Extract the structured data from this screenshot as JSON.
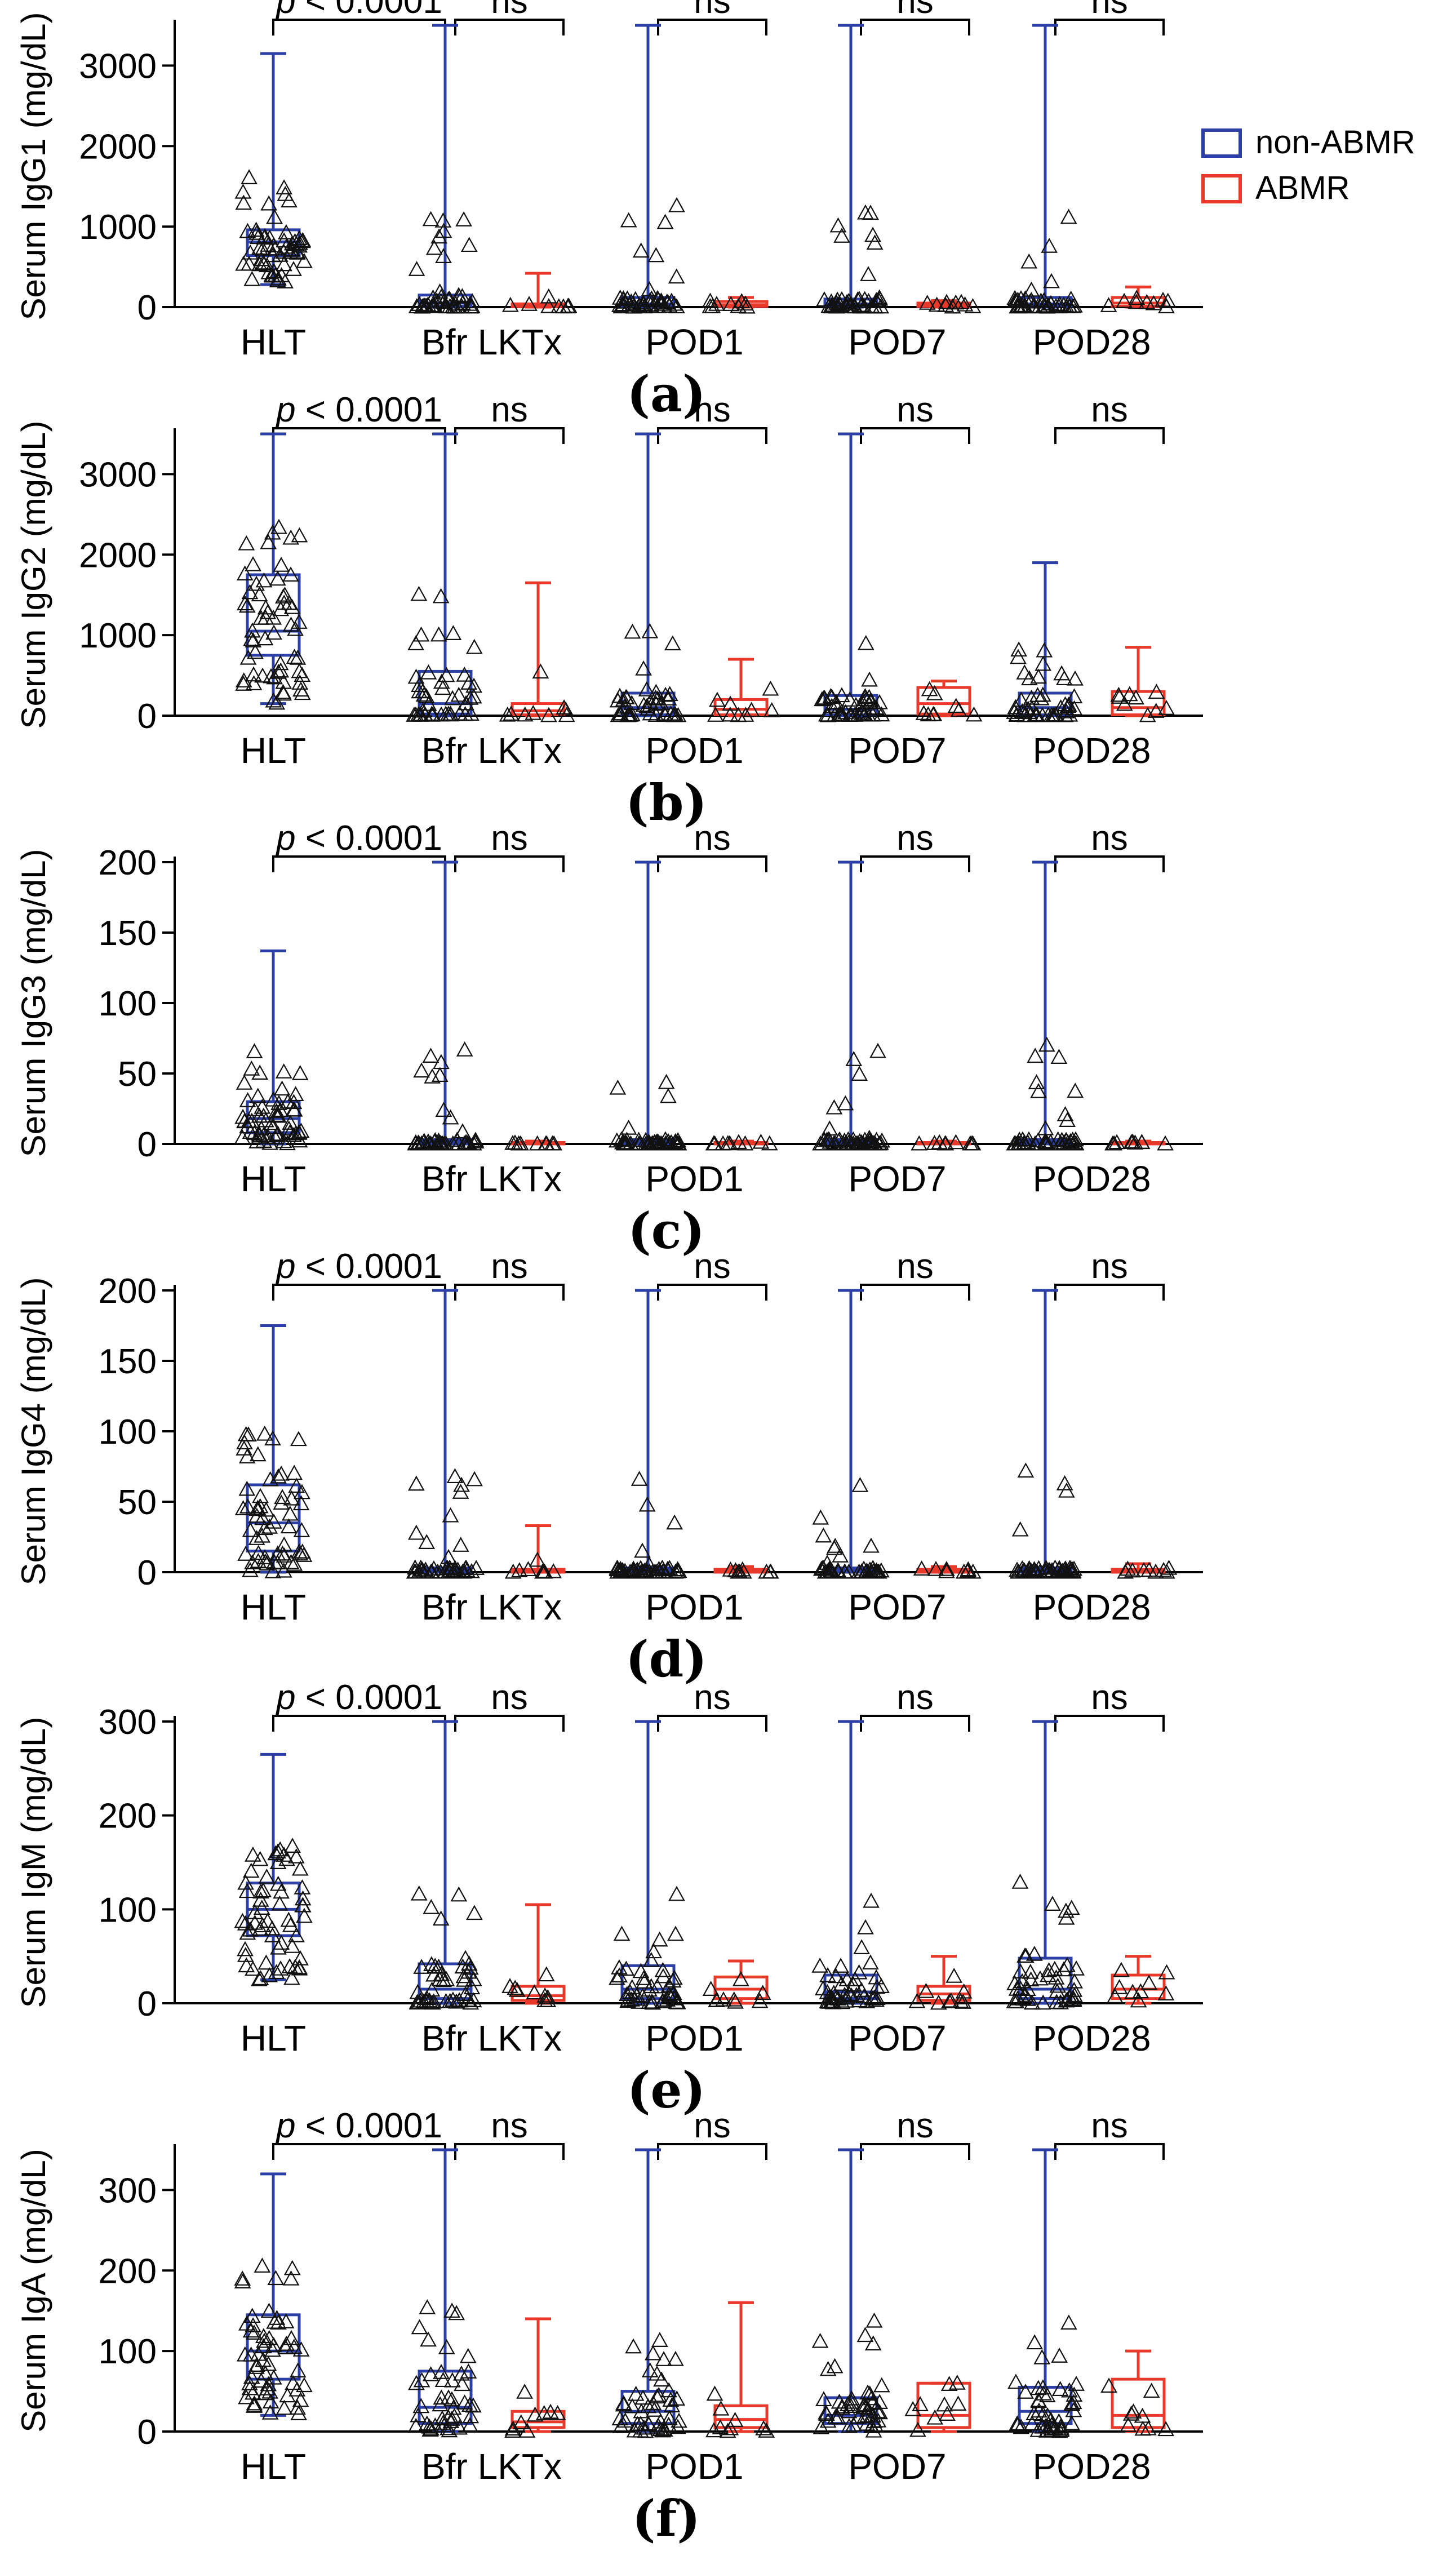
{
  "legend": {
    "non_abmr": "non-ABMR",
    "abmr": "ABMR"
  },
  "colors": {
    "non_abmr": "#2b3fa6",
    "abmr": "#e8392b",
    "points": "#111111"
  },
  "chart_data": [
    {
      "panel": "(a)",
      "type": "box",
      "ylabel": "Serum IgG1 (mg/dL)",
      "ylim": [
        0,
        3500
      ],
      "yticks": [
        0,
        1000,
        2000,
        3000
      ],
      "categories": [
        "HLT",
        "Bfr LKTx",
        "POD1",
        "POD7",
        "POD28"
      ],
      "comparisons": [
        "p < 0.0001",
        "ns",
        "ns",
        "ns",
        "ns"
      ],
      "boxes": [
        {
          "cat": 0,
          "group": "non-ABMR",
          "min": 280,
          "q1": 640,
          "median": 810,
          "q3": 960,
          "max": 3150
        },
        {
          "cat": 1,
          "group": "non-ABMR",
          "min": 0,
          "q1": 10,
          "median": 50,
          "q3": 150,
          "max": 3500
        },
        {
          "cat": 1,
          "group": "ABMR",
          "min": 0,
          "q1": 5,
          "median": 20,
          "q3": 40,
          "max": 420
        },
        {
          "cat": 2,
          "group": "non-ABMR",
          "min": 0,
          "q1": 10,
          "median": 40,
          "q3": 120,
          "max": 3500
        },
        {
          "cat": 2,
          "group": "ABMR",
          "min": 0,
          "q1": 10,
          "median": 30,
          "q3": 70,
          "max": 120
        },
        {
          "cat": 3,
          "group": "non-ABMR",
          "min": 0,
          "q1": 10,
          "median": 40,
          "q3": 100,
          "max": 3500
        },
        {
          "cat": 3,
          "group": "ABMR",
          "min": 0,
          "q1": 10,
          "median": 30,
          "q3": 50,
          "max": 80
        },
        {
          "cat": 4,
          "group": "non-ABMR",
          "min": 0,
          "q1": 10,
          "median": 40,
          "q3": 120,
          "max": 3500
        },
        {
          "cat": 4,
          "group": "ABMR",
          "min": 0,
          "q1": 10,
          "median": 50,
          "q3": 120,
          "max": 250
        }
      ]
    },
    {
      "panel": "(b)",
      "type": "box",
      "ylabel": "Serum IgG2 (mg/dL)",
      "ylim": [
        0,
        3500
      ],
      "yticks": [
        0,
        1000,
        2000,
        3000
      ],
      "categories": [
        "HLT",
        "Bfr LKTx",
        "POD1",
        "POD7",
        "POD28"
      ],
      "comparisons": [
        "p < 0.0001",
        "ns",
        "ns",
        "ns",
        "ns"
      ],
      "boxes": [
        {
          "cat": 0,
          "group": "non-ABMR",
          "min": 150,
          "q1": 750,
          "median": 1050,
          "q3": 1750,
          "max": 3500
        },
        {
          "cat": 1,
          "group": "non-ABMR",
          "min": 0,
          "q1": 20,
          "median": 150,
          "q3": 550,
          "max": 3500
        },
        {
          "cat": 1,
          "group": "ABMR",
          "min": 0,
          "q1": 10,
          "median": 60,
          "q3": 150,
          "max": 1650
        },
        {
          "cat": 2,
          "group": "non-ABMR",
          "min": 0,
          "q1": 10,
          "median": 100,
          "q3": 280,
          "max": 3500
        },
        {
          "cat": 2,
          "group": "ABMR",
          "min": 0,
          "q1": 10,
          "median": 80,
          "q3": 200,
          "max": 700
        },
        {
          "cat": 3,
          "group": "non-ABMR",
          "min": 0,
          "q1": 10,
          "median": 80,
          "q3": 250,
          "max": 3500
        },
        {
          "cat": 3,
          "group": "ABMR",
          "min": 0,
          "q1": 20,
          "median": 150,
          "q3": 350,
          "max": 430
        },
        {
          "cat": 4,
          "group": "non-ABMR",
          "min": 0,
          "q1": 10,
          "median": 100,
          "q3": 280,
          "max": 1900
        },
        {
          "cat": 4,
          "group": "ABMR",
          "min": 0,
          "q1": 10,
          "median": 100,
          "q3": 300,
          "max": 850
        }
      ]
    },
    {
      "panel": "(c)",
      "type": "box",
      "ylabel": "Serum IgG3 (mg/dL)",
      "ylim": [
        0,
        200
      ],
      "yticks": [
        0,
        50,
        100,
        150,
        200
      ],
      "categories": [
        "HLT",
        "Bfr LKTx",
        "POD1",
        "POD7",
        "POD28"
      ],
      "comparisons": [
        "p < 0.0001",
        "ns",
        "ns",
        "ns",
        "ns"
      ],
      "boxes": [
        {
          "cat": 0,
          "group": "non-ABMR",
          "min": 0,
          "q1": 8,
          "median": 18,
          "q3": 30,
          "max": 137
        },
        {
          "cat": 1,
          "group": "non-ABMR",
          "min": 0,
          "q1": 0,
          "median": 1,
          "q3": 3,
          "max": 200
        },
        {
          "cat": 1,
          "group": "ABMR",
          "min": 0,
          "q1": 0,
          "median": 0,
          "q3": 1,
          "max": 2
        },
        {
          "cat": 2,
          "group": "non-ABMR",
          "min": 0,
          "q1": 0,
          "median": 1,
          "q3": 3,
          "max": 200
        },
        {
          "cat": 2,
          "group": "ABMR",
          "min": 0,
          "q1": 0,
          "median": 0,
          "q3": 1,
          "max": 2
        },
        {
          "cat": 3,
          "group": "non-ABMR",
          "min": 0,
          "q1": 0,
          "median": 1,
          "q3": 3,
          "max": 200
        },
        {
          "cat": 3,
          "group": "ABMR",
          "min": 0,
          "q1": 0,
          "median": 0,
          "q3": 1,
          "max": 2
        },
        {
          "cat": 4,
          "group": "non-ABMR",
          "min": 0,
          "q1": 0,
          "median": 1,
          "q3": 3,
          "max": 200
        },
        {
          "cat": 4,
          "group": "ABMR",
          "min": 0,
          "q1": 0,
          "median": 0,
          "q3": 1,
          "max": 2
        }
      ]
    },
    {
      "panel": "(d)",
      "type": "box",
      "ylabel": "Serum IgG4 (mg/dL)",
      "ylim": [
        0,
        200
      ],
      "yticks": [
        0,
        50,
        100,
        150,
        200
      ],
      "categories": [
        "HLT",
        "Bfr LKTx",
        "POD1",
        "POD7",
        "POD28"
      ],
      "comparisons": [
        "p < 0.0001",
        "ns",
        "ns",
        "ns",
        "ns"
      ],
      "boxes": [
        {
          "cat": 0,
          "group": "non-ABMR",
          "min": 0,
          "q1": 15,
          "median": 35,
          "q3": 62,
          "max": 175
        },
        {
          "cat": 1,
          "group": "non-ABMR",
          "min": 0,
          "q1": 0,
          "median": 1,
          "q3": 3,
          "max": 200
        },
        {
          "cat": 1,
          "group": "ABMR",
          "min": 0,
          "q1": 0,
          "median": 1,
          "q3": 2,
          "max": 33
        },
        {
          "cat": 2,
          "group": "non-ABMR",
          "min": 0,
          "q1": 0,
          "median": 1,
          "q3": 3,
          "max": 200
        },
        {
          "cat": 2,
          "group": "ABMR",
          "min": 0,
          "q1": 0,
          "median": 1,
          "q3": 2,
          "max": 4
        },
        {
          "cat": 3,
          "group": "non-ABMR",
          "min": 0,
          "q1": 0,
          "median": 1,
          "q3": 3,
          "max": 200
        },
        {
          "cat": 3,
          "group": "ABMR",
          "min": 0,
          "q1": 0,
          "median": 1,
          "q3": 2,
          "max": 4
        },
        {
          "cat": 4,
          "group": "non-ABMR",
          "min": 0,
          "q1": 0,
          "median": 1,
          "q3": 3,
          "max": 200
        },
        {
          "cat": 4,
          "group": "ABMR",
          "min": 0,
          "q1": 0,
          "median": 1,
          "q3": 2,
          "max": 6
        }
      ]
    },
    {
      "panel": "(e)",
      "type": "box",
      "ylabel": "Serum IgM (mg/dL)",
      "ylim": [
        0,
        300
      ],
      "yticks": [
        0,
        100,
        200,
        300
      ],
      "categories": [
        "HLT",
        "Bfr LKTx",
        "POD1",
        "POD7",
        "POD28"
      ],
      "comparisons": [
        "p < 0.0001",
        "ns",
        "ns",
        "ns",
        "ns"
      ],
      "boxes": [
        {
          "cat": 0,
          "group": "non-ABMR",
          "min": 25,
          "q1": 72,
          "median": 100,
          "q3": 128,
          "max": 265
        },
        {
          "cat": 1,
          "group": "non-ABMR",
          "min": 0,
          "q1": 5,
          "median": 15,
          "q3": 42,
          "max": 300
        },
        {
          "cat": 1,
          "group": "ABMR",
          "min": 0,
          "q1": 3,
          "median": 8,
          "q3": 18,
          "max": 105
        },
        {
          "cat": 2,
          "group": "non-ABMR",
          "min": 0,
          "q1": 5,
          "median": 15,
          "q3": 40,
          "max": 300
        },
        {
          "cat": 2,
          "group": "ABMR",
          "min": 0,
          "q1": 5,
          "median": 15,
          "q3": 28,
          "max": 45
        },
        {
          "cat": 3,
          "group": "non-ABMR",
          "min": 0,
          "q1": 5,
          "median": 12,
          "q3": 30,
          "max": 300
        },
        {
          "cat": 3,
          "group": "ABMR",
          "min": 0,
          "q1": 3,
          "median": 10,
          "q3": 18,
          "max": 50
        },
        {
          "cat": 4,
          "group": "non-ABMR",
          "min": 0,
          "q1": 5,
          "median": 15,
          "q3": 48,
          "max": 300
        },
        {
          "cat": 4,
          "group": "ABMR",
          "min": 0,
          "q1": 5,
          "median": 15,
          "q3": 30,
          "max": 50
        }
      ]
    },
    {
      "panel": "(f)",
      "type": "box",
      "ylabel": "Serum IgA (mg/dL)",
      "ylim": [
        0,
        350
      ],
      "yticks": [
        0,
        100,
        200,
        300
      ],
      "categories": [
        "HLT",
        "Bfr LKTx",
        "POD1",
        "POD7",
        "POD28"
      ],
      "comparisons": [
        "p < 0.0001",
        "ns",
        "ns",
        "ns",
        "ns"
      ],
      "boxes": [
        {
          "cat": 0,
          "group": "non-ABMR",
          "min": 20,
          "q1": 65,
          "median": 100,
          "q3": 145,
          "max": 320
        },
        {
          "cat": 1,
          "group": "non-ABMR",
          "min": 0,
          "q1": 10,
          "median": 30,
          "q3": 75,
          "max": 350
        },
        {
          "cat": 1,
          "group": "ABMR",
          "min": 0,
          "q1": 5,
          "median": 12,
          "q3": 25,
          "max": 140
        },
        {
          "cat": 2,
          "group": "non-ABMR",
          "min": 0,
          "q1": 10,
          "median": 25,
          "q3": 50,
          "max": 350
        },
        {
          "cat": 2,
          "group": "ABMR",
          "min": 0,
          "q1": 5,
          "median": 15,
          "q3": 32,
          "max": 160
        },
        {
          "cat": 3,
          "group": "non-ABMR",
          "min": 0,
          "q1": 10,
          "median": 20,
          "q3": 42,
          "max": 350
        },
        {
          "cat": 3,
          "group": "ABMR",
          "min": 0,
          "q1": 5,
          "median": 20,
          "q3": 60,
          "max": 60
        },
        {
          "cat": 4,
          "group": "non-ABMR",
          "min": 0,
          "q1": 10,
          "median": 25,
          "q3": 55,
          "max": 350
        },
        {
          "cat": 4,
          "group": "ABMR",
          "min": 0,
          "q1": 5,
          "median": 20,
          "q3": 65,
          "max": 100
        }
      ]
    }
  ]
}
